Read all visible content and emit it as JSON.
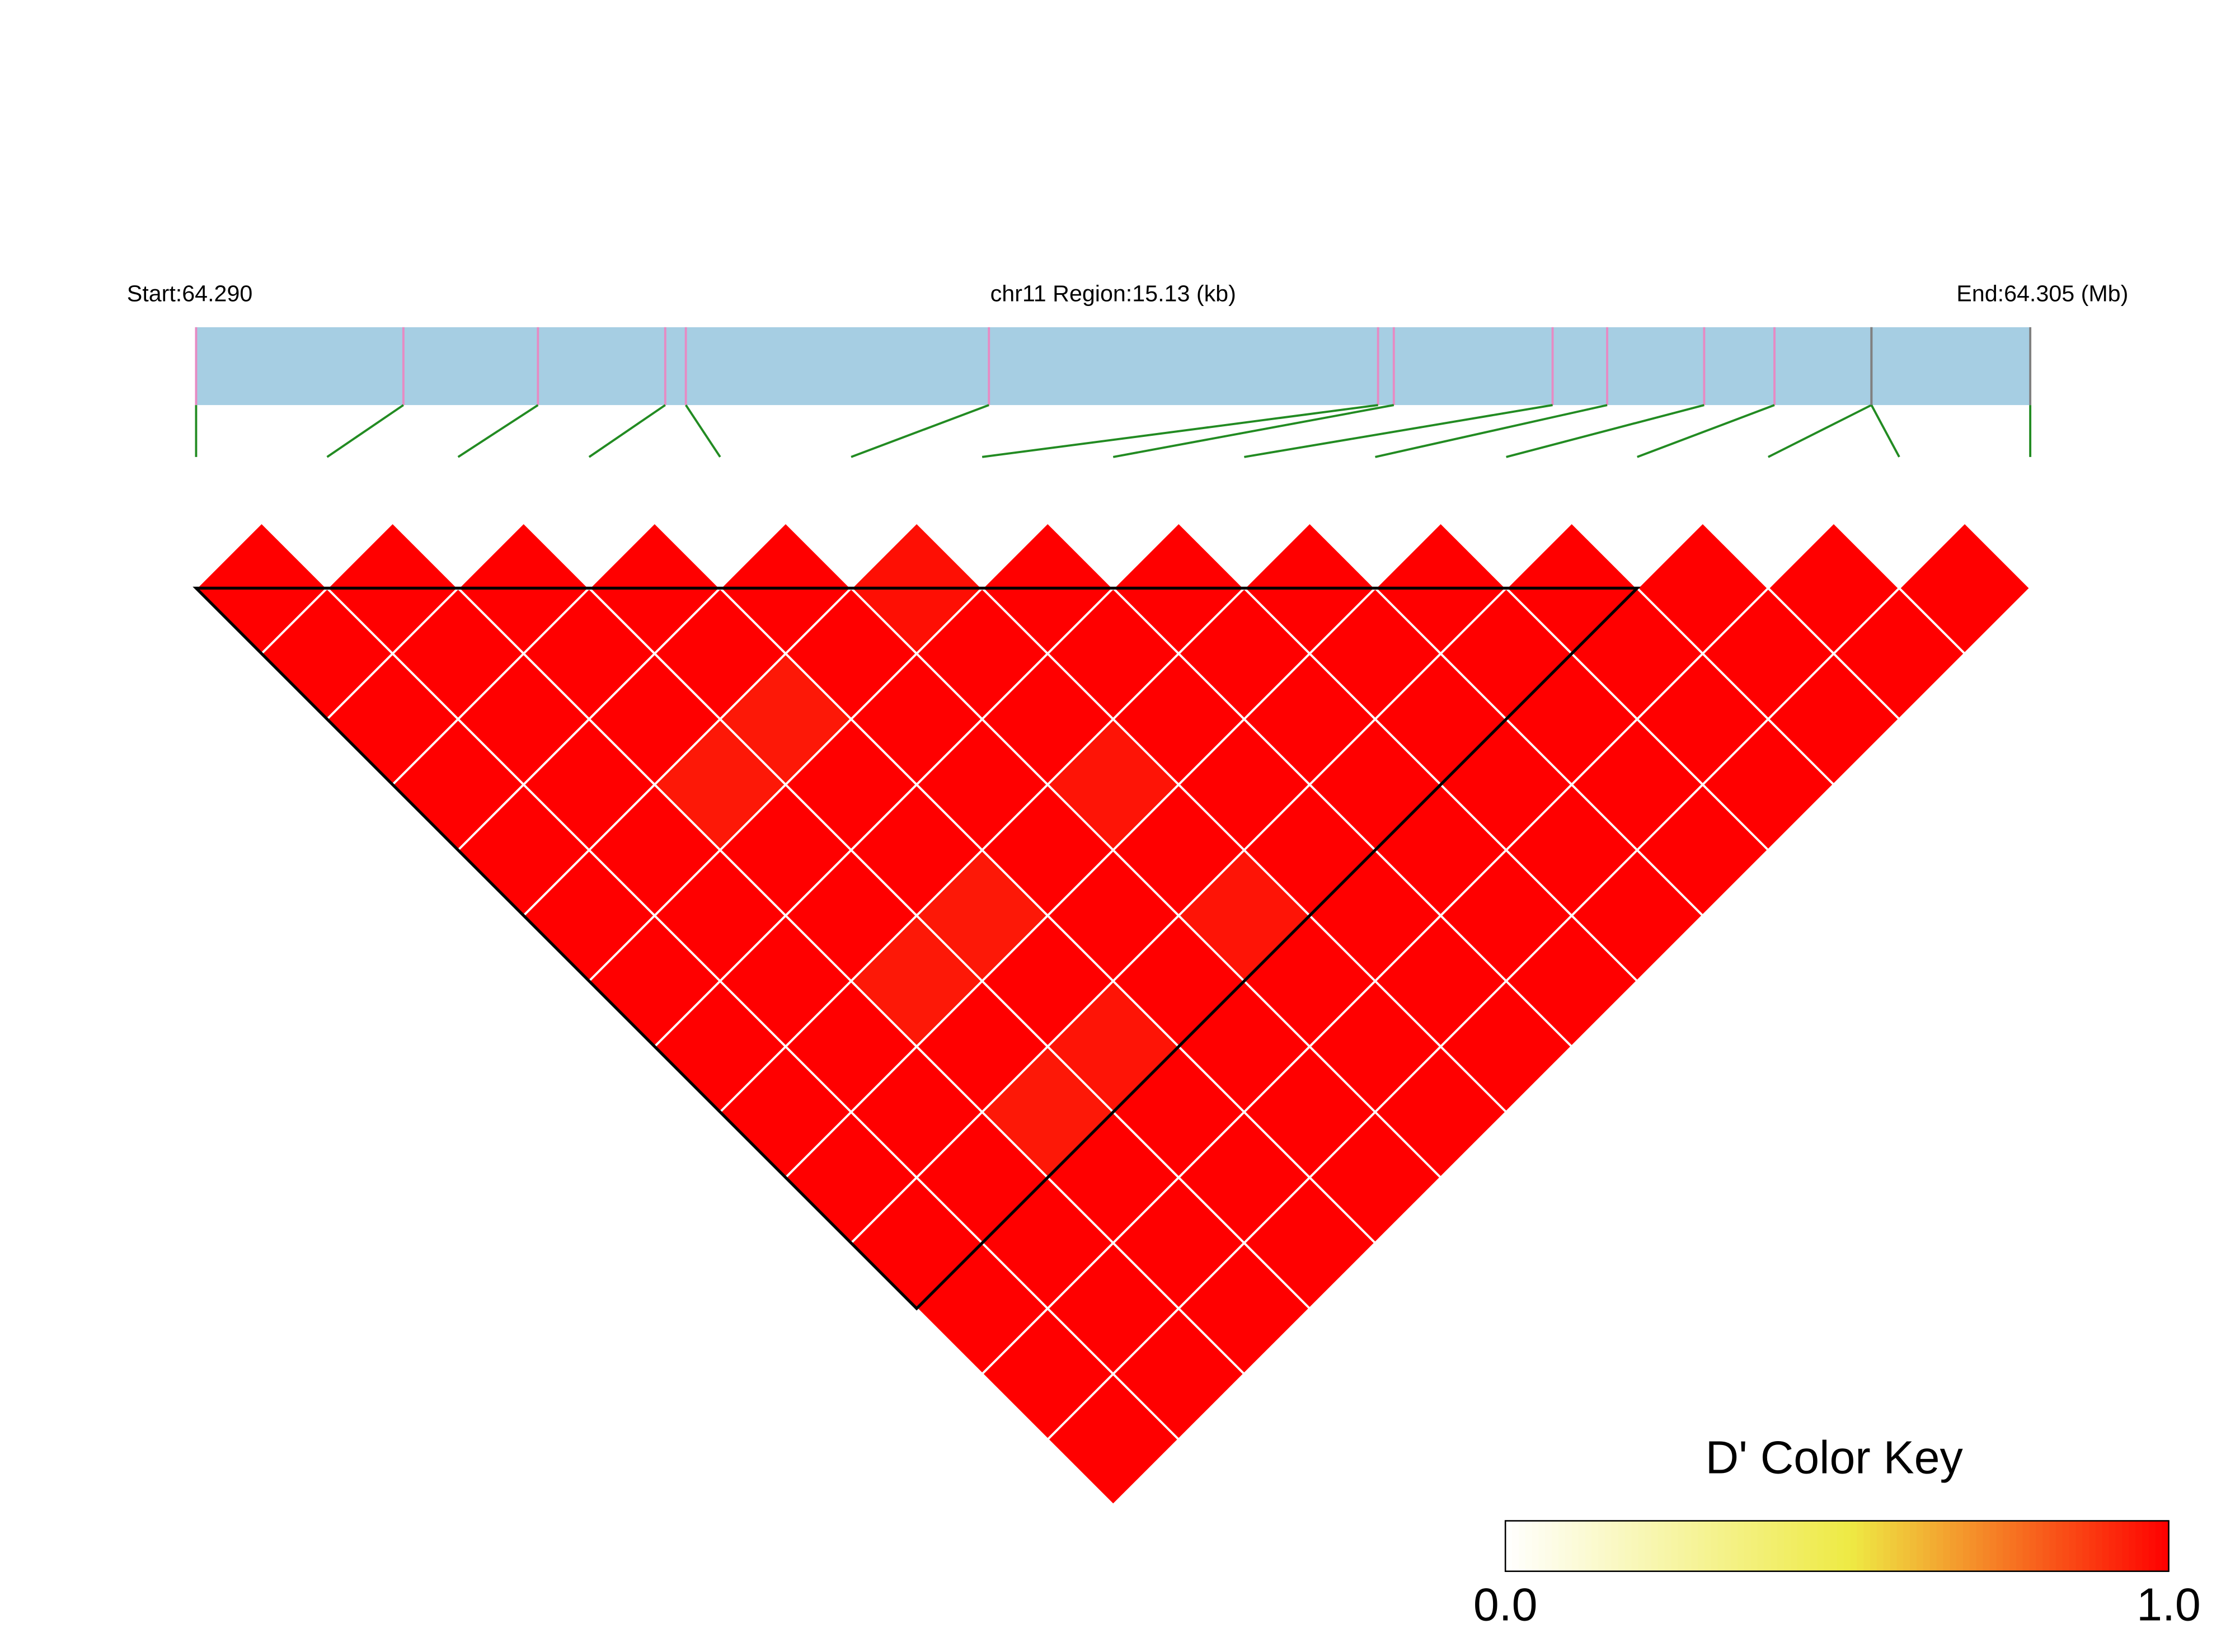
{
  "chart_data": {
    "type": "heatmap",
    "start_label": "Start:64.290",
    "region_label": "chr11 Region:15.13 (kb)",
    "end_label": "End:64.305 (Mb)",
    "xlim": [
      0,
      15.13
    ],
    "snp_positions": [
      0,
      1.71,
      2.82,
      3.87,
      4.04,
      6.54,
      9.75,
      9.88,
      11.19,
      11.64,
      12.44,
      13.02,
      13.82,
      13.82,
      15.13
    ],
    "snp_colors": [
      "#e78ac3",
      "#e78ac3",
      "#e78ac3",
      "#e78ac3",
      "#e78ac3",
      "#e78ac3",
      "#e78ac3",
      "#e78ac3",
      "#e78ac3",
      "#e78ac3",
      "#e78ac3",
      "#e78ac3",
      "#808080",
      "#808080",
      "#808080"
    ],
    "region_color": "#a6cee3",
    "dprime": [
      [
        1,
        1,
        1,
        1,
        1,
        1,
        1,
        1,
        1,
        1,
        1,
        1,
        1,
        1
      ],
      [
        1,
        1,
        1,
        1,
        1,
        1,
        1,
        1,
        1,
        1,
        1,
        1,
        1
      ],
      [
        1,
        1,
        1,
        0.95,
        1,
        1,
        0.95,
        1,
        0.95,
        1,
        1,
        1
      ],
      [
        1,
        1,
        0.95,
        1,
        1,
        0.95,
        1,
        0.96,
        1,
        1,
        1
      ],
      [
        1,
        1,
        1,
        1,
        1,
        1,
        1,
        1,
        1,
        1
      ],
      [
        0.97,
        1,
        1,
        0.96,
        1,
        0.96,
        1,
        1,
        1
      ],
      [
        1,
        1,
        1,
        1,
        1,
        1,
        1,
        1
      ],
      [
        1,
        1,
        1,
        1,
        1,
        1,
        1
      ],
      [
        1,
        1,
        1,
        1,
        1,
        1
      ],
      [
        1,
        1,
        1,
        1,
        1
      ],
      [
        1,
        1,
        1,
        1
      ],
      [
        1,
        1,
        1
      ],
      [
        1,
        1
      ],
      [
        1
      ]
    ],
    "blocks": [
      [
        0,
        11
      ]
    ],
    "color_key": {
      "title": "D' Color Key",
      "ticks": [
        {
          "value": 0,
          "label": "0.0"
        },
        {
          "value": 1,
          "label": "1.0"
        }
      ],
      "colors": [
        "#ffffff",
        "#eeea44",
        "#ff0000"
      ],
      "stops": [
        0,
        0.52,
        1
      ]
    }
  }
}
